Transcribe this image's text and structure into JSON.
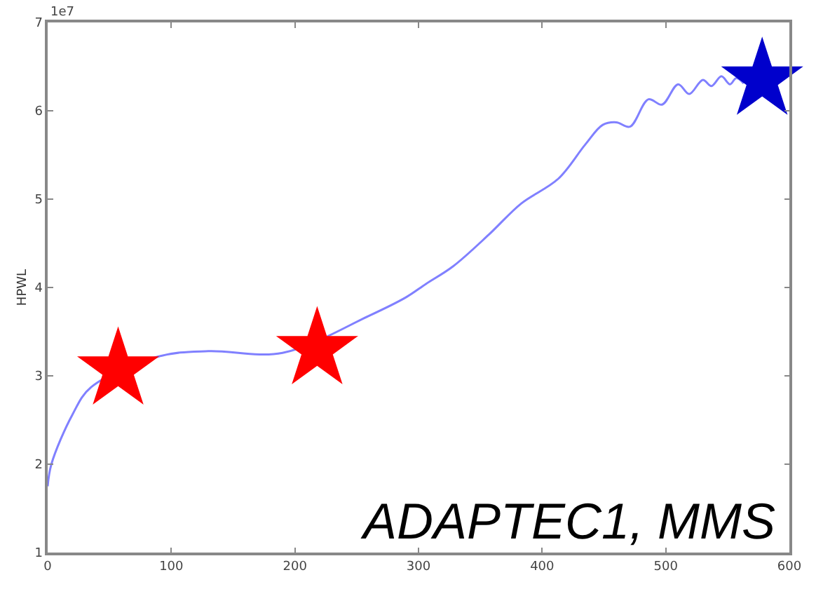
{
  "chart_data": {
    "type": "line",
    "ylabel": "HPWL",
    "xlim": [
      0,
      600
    ],
    "xticks": [
      0,
      100,
      200,
      300,
      400,
      500,
      600
    ],
    "ylim": [
      1,
      7
    ],
    "yticks": [
      1,
      2,
      3,
      4,
      5,
      6,
      7
    ],
    "annotations": [
      "1e7",
      "ADAPTEC1, MMS"
    ],
    "series": [
      {
        "color": "#8080ff",
        "marker": "none",
        "line_style": "solid",
        "x": [
          0,
          3,
          20,
          35,
          90,
          130,
          190,
          260,
          290,
          306,
          328,
          357,
          383,
          413,
          435,
          449,
          460,
          471,
          486,
          497,
          510,
          519,
          530,
          537,
          545,
          552,
          557,
          563
        ],
        "values": [
          1.75,
          2.0,
          2.56,
          2.87,
          3.22,
          3.28,
          3.26,
          3.68,
          3.89,
          4.04,
          4.24,
          4.6,
          4.95,
          5.23,
          5.62,
          5.84,
          5.87,
          5.82,
          6.13,
          6.07,
          6.3,
          6.19,
          6.35,
          6.28,
          6.39,
          6.3,
          6.37,
          6.31
        ]
      },
      {
        "type": "scatter",
        "marker": "star",
        "colors": [
          "#ff0000",
          "#ff0000",
          "#0000cc"
        ],
        "x": [
          57,
          218,
          578
        ],
        "values": [
          3.07,
          3.3,
          6.35
        ]
      }
    ]
  }
}
